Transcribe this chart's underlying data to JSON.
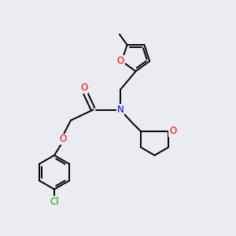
{
  "bg_color": "#ebebf2",
  "bond_color": "#000000",
  "bond_width": 1.4,
  "atom_colors": {
    "O": "#ff0000",
    "N": "#0000ff",
    "Cl": "#00aa00",
    "C": "#000000"
  },
  "font_size": 8.5
}
